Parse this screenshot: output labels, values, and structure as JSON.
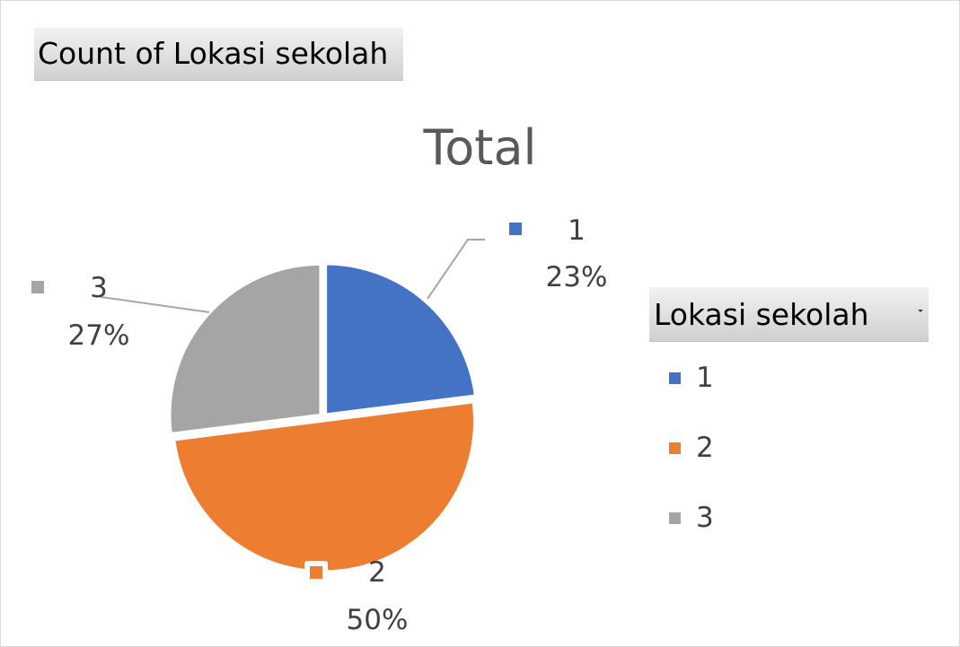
{
  "pivot_field_button": "Count of Lokasi sekolah",
  "legend": {
    "header": "Lokasi sekolah",
    "dropdown_icon": "chevron-down-icon"
  },
  "chart_data": {
    "type": "pie",
    "title": "Total",
    "categories": [
      "1",
      "2",
      "3"
    ],
    "values": [
      23,
      50,
      27
    ],
    "percent_labels": [
      "23%",
      "50%",
      "27%"
    ],
    "colors": [
      "#4472c4",
      "#ed7d31",
      "#a5a5a5"
    ],
    "legend_placement": "right",
    "data_labels": "category-and-percent with leader lines"
  }
}
